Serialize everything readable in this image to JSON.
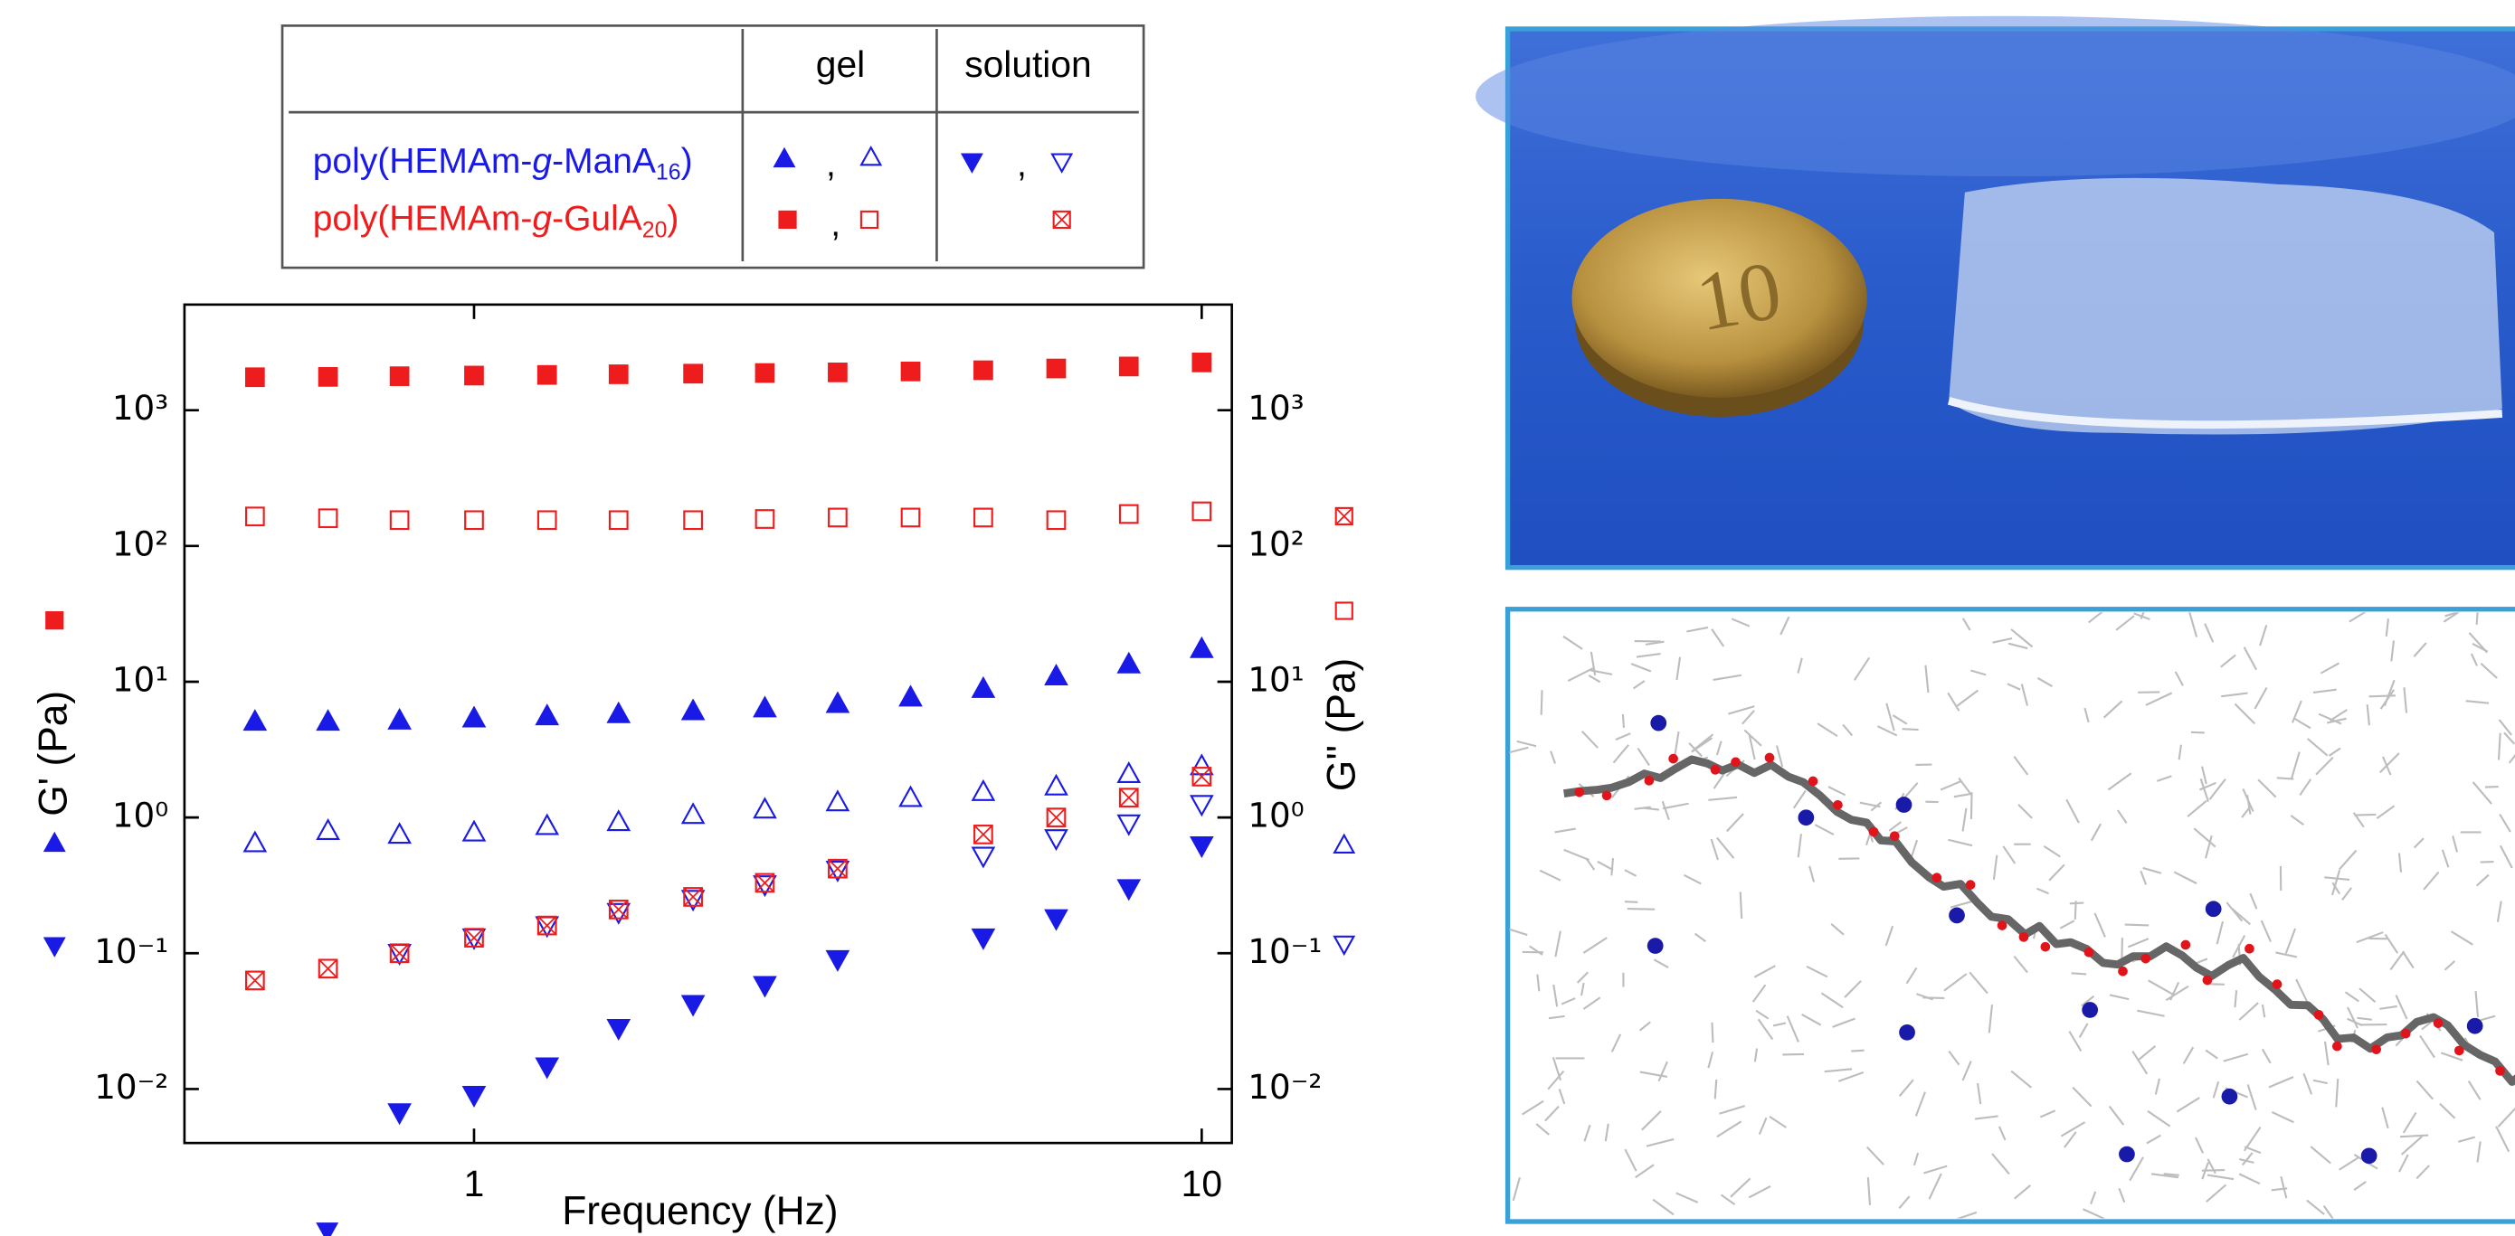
{
  "chart_data": {
    "type": "scatter",
    "log_x": true,
    "log_y": true,
    "xlabel": "Frequency (Hz)",
    "ylabel": "G' (Pa)",
    "y2label": "G'' (Pa)",
    "x": [
      0.5,
      0.63,
      0.79,
      1,
      1.26,
      1.58,
      2,
      2.51,
      3.16,
      3.98,
      5.01,
      6.31,
      7.94,
      10
    ],
    "xlim": [
      0.4,
      11
    ],
    "xticks": [
      1,
      10
    ],
    "ylim": [
      0.004,
      6000
    ],
    "yticks": [
      {
        "value": 0.01,
        "label": "10⁻²"
      },
      {
        "value": 0.1,
        "label": "10⁻¹"
      },
      {
        "value": 1,
        "label": "10⁰"
      },
      {
        "value": 10,
        "label": "10¹"
      },
      {
        "value": 100,
        "label": "10²"
      },
      {
        "value": 1000,
        "label": "10³"
      }
    ],
    "y2lim": [
      0.004,
      6000
    ],
    "y2ticks": [
      {
        "value": 0.01,
        "label": "10⁻²"
      },
      {
        "value": 0.1,
        "label": "10⁻¹"
      },
      {
        "value": 1,
        "label": "10⁰"
      },
      {
        "value": 10,
        "label": "10¹"
      },
      {
        "value": 100,
        "label": "10²"
      },
      {
        "value": 1000,
        "label": "10³"
      }
    ],
    "series": [
      {
        "color": "#ee1c1c",
        "marker": "square",
        "filled": true,
        "values": [
          1750,
          1760,
          1780,
          1800,
          1820,
          1840,
          1860,
          1880,
          1900,
          1930,
          1970,
          2030,
          2100,
          2250
        ]
      },
      {
        "color": "#ee1c1c",
        "marker": "square",
        "filled": false,
        "axis": "y2",
        "values": [
          165,
          160,
          155,
          155,
          155,
          155,
          155,
          158,
          162,
          162,
          162,
          155,
          172,
          180
        ]
      },
      {
        "color": "#1a1ae6",
        "marker": "triangle-up",
        "filled": true,
        "values": [
          5.1,
          5.1,
          5.2,
          5.4,
          5.6,
          5.8,
          6.1,
          6.4,
          6.9,
          7.7,
          8.9,
          11,
          13.5,
          17.5
        ]
      },
      {
        "color": "#1a1ae6",
        "marker": "triangle-up",
        "filled": false,
        "axis": "y2",
        "values": [
          0.65,
          0.8,
          0.75,
          0.78,
          0.87,
          0.93,
          1.05,
          1.15,
          1.3,
          1.4,
          1.55,
          1.7,
          2.1,
          2.4
        ]
      },
      {
        "color": "#1a1ae6",
        "marker": "triangle-down",
        "filled": true,
        "values": [
          null,
          null,
          0.0067,
          0.009,
          0.0146,
          0.028,
          0.042,
          0.058,
          0.09,
          null,
          0.13,
          0.18,
          0.3,
          0.62
        ]
      },
      {
        "color": "#1a1ae6",
        "marker": "triangle-down",
        "filled": false,
        "axis": "y2",
        "values": [
          null,
          null,
          0.1,
          0.13,
          0.16,
          0.2,
          0.25,
          0.32,
          0.41,
          null,
          0.52,
          0.7,
          0.9,
          1.25
        ]
      },
      {
        "color": "#ee1c1c",
        "marker": "square-x",
        "filled": false,
        "axis": "y2",
        "values": [
          0.063,
          0.077,
          0.1,
          0.13,
          0.16,
          0.21,
          0.26,
          0.33,
          0.42,
          null,
          0.75,
          1.0,
          1.4,
          2.0
        ]
      }
    ],
    "legend_table": {
      "headers": [
        "gel",
        "solution"
      ],
      "separator": ",",
      "rows": [
        {
          "color": "#1a1ae6",
          "label": [
            "poly(HEMAm-",
            "g",
            "-ManA",
            "16",
            ")"
          ]
        },
        {
          "color": "#ee1c1c",
          "label": [
            "poly(HEMAm-",
            "g",
            "-GulA",
            "20",
            ")"
          ]
        }
      ]
    }
  }
}
